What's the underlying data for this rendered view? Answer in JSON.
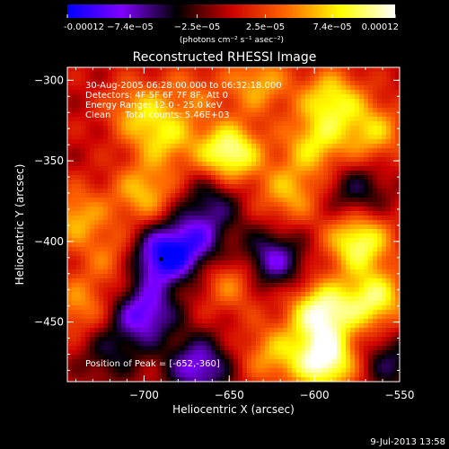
{
  "chart_data": {
    "type": "heatmap",
    "title": "Reconstructed RHESSI Image",
    "xlabel": "Heliocentric X (arcsec)",
    "ylabel": "Heliocentric Y (arcsec)",
    "xlim": [
      -745,
      -550
    ],
    "ylim": [
      -487,
      -292
    ],
    "xticks": [
      -700,
      -650,
      -600,
      -550
    ],
    "xtick_labels": [
      "−700",
      "−650",
      "−600",
      "−550"
    ],
    "yticks": [
      -300,
      -350,
      -400,
      -450
    ],
    "ytick_labels": [
      "−300",
      "−350",
      "−400",
      "−450"
    ],
    "colorbar": {
      "ticks": [
        -0.00012,
        -7.4e-05,
        -2.5e-05,
        2.5e-05,
        7.4e-05,
        0.00012
      ],
      "tick_labels": [
        "-0.00012",
        "−7.4e−05",
        "−2.5e−05",
        "2.5e−05",
        "7.4e−05",
        "0.00012"
      ],
      "range": [
        -0.00012,
        0.00012
      ],
      "unit_label": "(photons cm⁻² s⁻¹ asec⁻²)"
    },
    "colormap": [
      "#0000ff",
      "#8000ff",
      "#000000",
      "#cc0000",
      "#ff6600",
      "#ffff00",
      "#ffffff"
    ],
    "blobs": [
      {
        "x": -704,
        "y": -318,
        "v": 5.5e-05
      },
      {
        "x": -688,
        "y": -336,
        "v": 6.5e-05
      },
      {
        "x": -650,
        "y": -345,
        "v": 0.00011
      },
      {
        "x": -700,
        "y": -370,
        "v": 6.5e-05
      },
      {
        "x": -672,
        "y": -308,
        "v": 3.5e-05
      },
      {
        "x": -633,
        "y": -302,
        "v": 6e-05
      },
      {
        "x": -590,
        "y": -312,
        "v": 8e-05
      },
      {
        "x": -600,
        "y": -340,
        "v": 7e-05
      },
      {
        "x": -566,
        "y": -332,
        "v": 6.5e-05
      },
      {
        "x": -615,
        "y": -370,
        "v": 6e-05
      },
      {
        "x": -574,
        "y": -400,
        "v": 0.0001
      },
      {
        "x": -565,
        "y": -436,
        "v": 9e-05
      },
      {
        "x": -596,
        "y": -444,
        "v": 0.00011
      },
      {
        "x": -594,
        "y": -474,
        "v": 0.00012
      },
      {
        "x": -625,
        "y": -470,
        "v": 5.5e-05
      },
      {
        "x": -648,
        "y": -425,
        "v": 5e-05
      },
      {
        "x": -740,
        "y": -385,
        "v": 6e-05
      },
      {
        "x": -718,
        "y": -410,
        "v": 4e-05
      },
      {
        "x": -738,
        "y": -440,
        "v": 5e-05
      },
      {
        "x": -690,
        "y": -410,
        "v": -0.00011
      },
      {
        "x": -700,
        "y": -445,
        "v": -9e-05
      },
      {
        "x": -668,
        "y": -478,
        "v": -8.5e-05
      },
      {
        "x": -670,
        "y": -400,
        "v": -7e-05
      },
      {
        "x": -625,
        "y": -412,
        "v": -8e-05
      },
      {
        "x": -660,
        "y": -375,
        "v": -5e-05
      },
      {
        "x": -720,
        "y": -470,
        "v": -4e-05
      },
      {
        "x": -575,
        "y": -370,
        "v": -5e-05
      },
      {
        "x": -555,
        "y": -475,
        "v": -5e-05
      }
    ],
    "peak": {
      "x": -652,
      "y": -360
    },
    "annotations": [
      "30-Aug-2005 06:28:00.000 to 06:32:18.000",
      "Detectors: 4F 5F 6F 7F 8F, Att 0",
      "Energy Range: 12.0 - 25.0 keV",
      "Clean     Total counts: 5.46E+03",
      "Position of Peak = [-652,-360]"
    ],
    "timestamp": "9-Jul-2013 13:58"
  }
}
